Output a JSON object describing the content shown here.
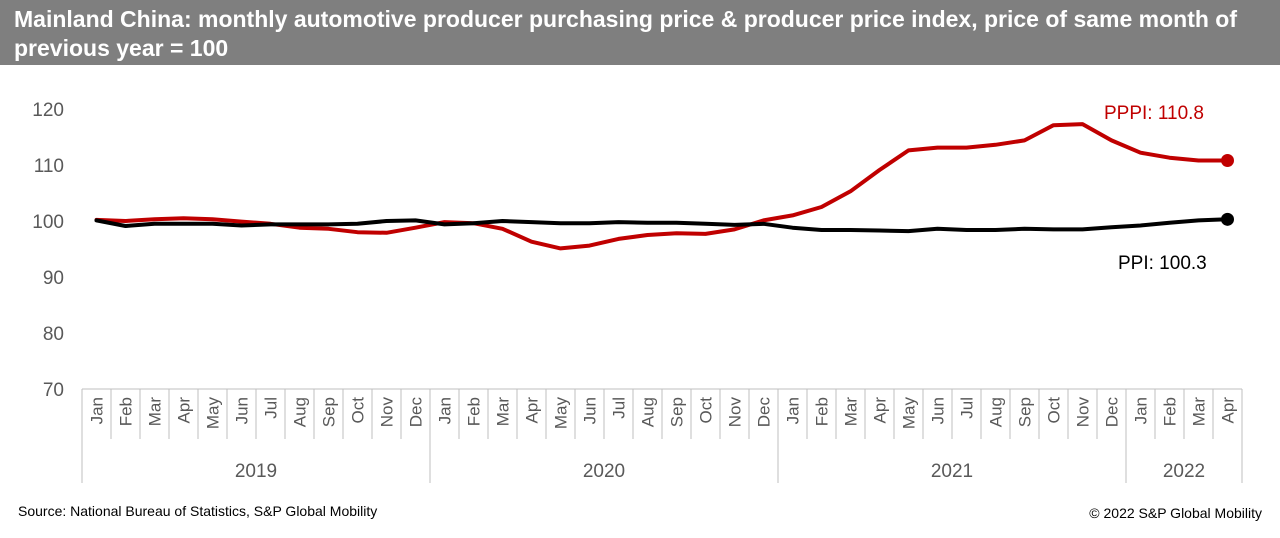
{
  "title": "Mainland China: monthly automotive producer purchasing price & producer price index, price of same month of previous year = 100",
  "source": "Source: National Bureau of Statistics, S&P Global Mobility",
  "copyright": "© 2022 S&P Global Mobility",
  "chart_data": {
    "type": "line",
    "title": "Mainland China: monthly automotive producer purchasing price & producer price index, price of same month of previous year = 100",
    "xlabel": "",
    "ylabel": "",
    "ylim": [
      70,
      120
    ],
    "yticks": [
      70,
      80,
      90,
      100,
      110,
      120
    ],
    "grid": false,
    "categories": [
      "Jan",
      "Feb",
      "Mar",
      "Apr",
      "May",
      "Jun",
      "Jul",
      "Aug",
      "Sep",
      "Oct",
      "Nov",
      "Dec",
      "Jan",
      "Feb",
      "Mar",
      "Apr",
      "May",
      "Jun",
      "Jul",
      "Aug",
      "Sep",
      "Oct",
      "Nov",
      "Dec",
      "Jan",
      "Feb",
      "Mar",
      "Apr",
      "May",
      "Jun",
      "Jul",
      "Aug",
      "Sep",
      "Oct",
      "Nov",
      "Dec",
      "Jan",
      "Feb",
      "Mar",
      "Apr"
    ],
    "year_groups": [
      {
        "label": "2019",
        "count": 12
      },
      {
        "label": "2020",
        "count": 12
      },
      {
        "label": "2021",
        "count": 12
      },
      {
        "label": "2022",
        "count": 4
      }
    ],
    "series": [
      {
        "name": "PPPI",
        "end_label": "PPPI: 110.8",
        "color": "#c00000",
        "values": [
          100.2,
          100.0,
          100.3,
          100.5,
          100.3,
          99.9,
          99.5,
          98.8,
          98.6,
          98.0,
          97.9,
          98.8,
          99.8,
          99.6,
          98.6,
          96.3,
          95.1,
          95.6,
          96.8,
          97.5,
          97.8,
          97.7,
          98.5,
          100.1,
          101.0,
          102.5,
          105.3,
          109.1,
          112.6,
          113.1,
          113.1,
          113.6,
          114.4,
          117.1,
          117.3,
          114.4,
          112.2,
          111.3,
          110.8,
          110.8
        ]
      },
      {
        "name": "PPI",
        "end_label": "PPI: 100.3",
        "color": "#000000",
        "values": [
          100.1,
          99.1,
          99.5,
          99.5,
          99.5,
          99.2,
          99.4,
          99.4,
          99.4,
          99.5,
          100.0,
          100.1,
          99.4,
          99.6,
          100.0,
          99.8,
          99.6,
          99.6,
          99.8,
          99.7,
          99.7,
          99.5,
          99.3,
          99.5,
          98.8,
          98.4,
          98.4,
          98.3,
          98.2,
          98.6,
          98.4,
          98.4,
          98.6,
          98.5,
          98.5,
          98.9,
          99.2,
          99.7,
          100.1,
          100.3
        ]
      }
    ]
  }
}
